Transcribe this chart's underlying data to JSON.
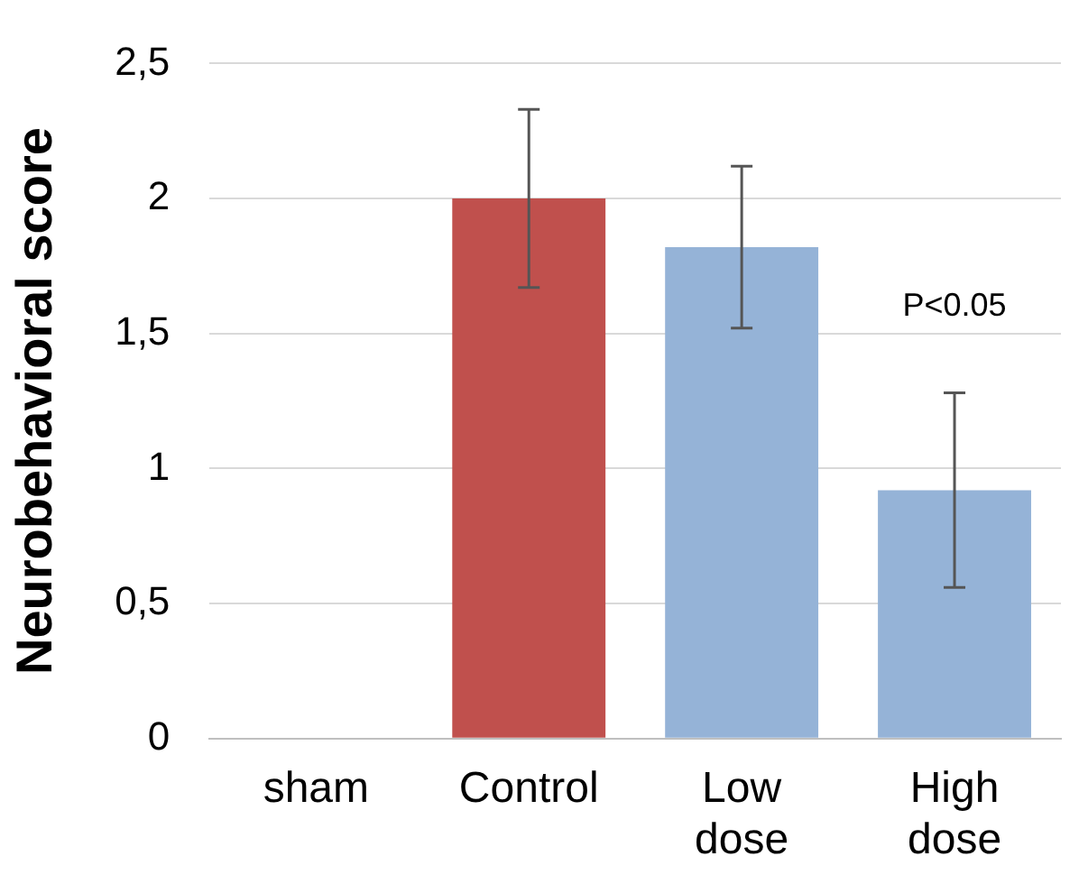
{
  "chart_data": {
    "type": "bar",
    "ylabel": "Neurobehavioral score",
    "categories": [
      "sham",
      "Control",
      "Low dose",
      "High dose"
    ],
    "values": [
      0,
      2.0,
      1.82,
      0.92
    ],
    "colors": [
      "#95b3d7",
      "#c0504d",
      "#95b3d7",
      "#95b3d7"
    ],
    "errors": [
      null,
      [
        1.67,
        2.33
      ],
      [
        1.52,
        2.12
      ],
      [
        0.56,
        1.28
      ]
    ],
    "ylim": [
      0,
      2.5
    ],
    "yticks": [
      0,
      {
        "value": 0.5,
        "label": "0,5"
      },
      1,
      {
        "value": 1.5,
        "label": "1,5"
      },
      2,
      {
        "value": 2.5,
        "label": "2,5"
      }
    ],
    "grid": "y",
    "annotations": [
      "P<0.05"
    ]
  }
}
